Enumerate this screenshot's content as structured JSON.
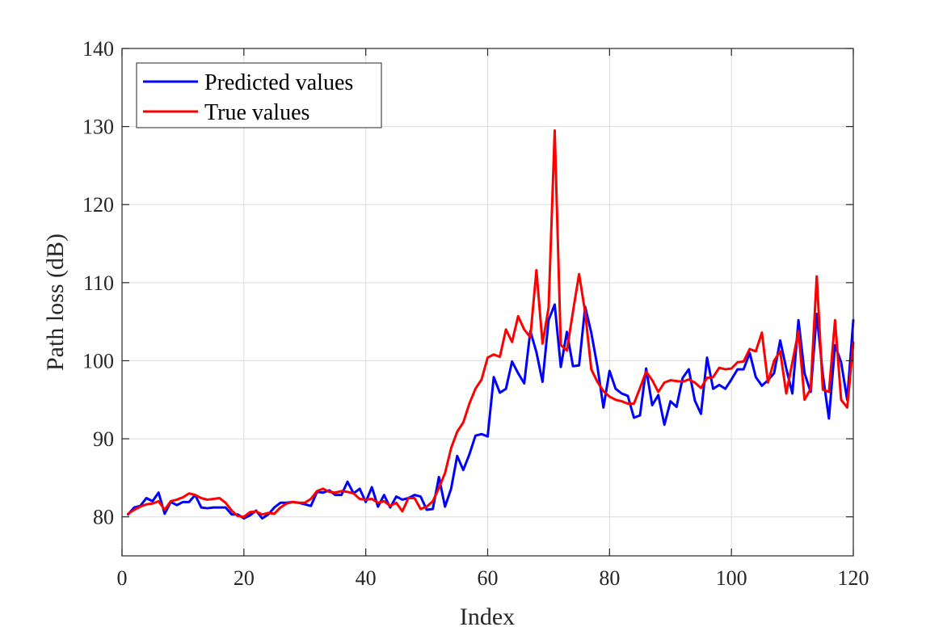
{
  "chart_data": {
    "type": "line",
    "xlabel": "Index",
    "ylabel": "Path loss (dB)",
    "xlim": [
      0,
      120
    ],
    "ylim": [
      75,
      140
    ],
    "xticks": [
      0,
      20,
      40,
      60,
      80,
      100,
      120
    ],
    "yticks": [
      80,
      90,
      100,
      110,
      120,
      130,
      140
    ],
    "grid": true,
    "legend_position": "top-left",
    "series": [
      {
        "name": "Predicted values",
        "color": "#0000ff",
        "x": [
          1,
          2,
          3,
          4,
          5,
          6,
          7,
          8,
          9,
          10,
          11,
          12,
          13,
          14,
          15,
          16,
          17,
          18,
          19,
          20,
          21,
          22,
          23,
          24,
          25,
          26,
          27,
          28,
          29,
          30,
          31,
          32,
          33,
          34,
          35,
          36,
          37,
          38,
          39,
          40,
          41,
          42,
          43,
          44,
          45,
          46,
          47,
          48,
          49,
          50,
          51,
          52,
          53,
          54,
          55,
          56,
          57,
          58,
          59,
          60,
          61,
          62,
          63,
          64,
          65,
          66,
          67,
          68,
          69,
          70,
          71,
          72,
          73,
          74,
          75,
          76,
          77,
          78,
          79,
          80,
          81,
          82,
          83,
          84,
          85,
          86,
          87,
          88,
          89,
          90,
          91,
          92,
          93,
          94,
          95,
          96,
          97,
          98,
          99,
          100,
          101,
          102,
          103,
          104,
          105,
          106,
          107,
          108,
          109,
          110,
          111,
          112,
          113,
          114,
          115,
          116,
          117,
          118,
          119,
          120
        ],
        "values": [
          80.3,
          81.2,
          81.4,
          82.4,
          82.0,
          83.1,
          80.4,
          81.9,
          81.5,
          81.9,
          81.9,
          82.8,
          81.2,
          81.1,
          81.2,
          81.2,
          81.2,
          80.3,
          80.3,
          79.8,
          80.2,
          80.8,
          79.8,
          80.3,
          81.2,
          81.8,
          81.8,
          81.9,
          81.8,
          81.6,
          81.4,
          83.2,
          83.1,
          83.4,
          82.8,
          82.8,
          84.5,
          83.0,
          83.6,
          81.9,
          83.8,
          81.3,
          82.8,
          81.2,
          82.6,
          82.2,
          82.4,
          82.8,
          82.6,
          80.9,
          81.0,
          85.1,
          81.3,
          83.6,
          87.8,
          86.0,
          88.0,
          90.4,
          90.6,
          90.3,
          97.9,
          95.9,
          96.4,
          99.9,
          98.4,
          97.1,
          103.8,
          101.1,
          97.3,
          105.2,
          107.2,
          99.2,
          103.7,
          99.3,
          99.4,
          106.9,
          103.6,
          99.3,
          94.0,
          98.7,
          96.4,
          95.8,
          95.5,
          92.7,
          93.0,
          99.0,
          94.3,
          95.6,
          91.8,
          94.8,
          94.1,
          97.8,
          98.9,
          94.9,
          93.2,
          100.4,
          96.4,
          96.9,
          96.4,
          97.6,
          98.9,
          98.9,
          101.0,
          97.9,
          96.8,
          97.5,
          98.4,
          102.6,
          99.0,
          95.8,
          105.2,
          98.4,
          96.0,
          106.0,
          98.2,
          92.6,
          102.0,
          99.8,
          95.0,
          105.2
        ]
      },
      {
        "name": "True values",
        "color": "#ff0000",
        "x": [
          1,
          2,
          3,
          4,
          5,
          6,
          7,
          8,
          9,
          10,
          11,
          12,
          13,
          14,
          15,
          16,
          17,
          18,
          19,
          20,
          21,
          22,
          23,
          24,
          25,
          26,
          27,
          28,
          29,
          30,
          31,
          32,
          33,
          34,
          35,
          36,
          37,
          38,
          39,
          40,
          41,
          42,
          43,
          44,
          45,
          46,
          47,
          48,
          49,
          50,
          51,
          52,
          53,
          54,
          55,
          56,
          57,
          58,
          59,
          60,
          61,
          62,
          63,
          64,
          65,
          66,
          67,
          68,
          69,
          70,
          71,
          72,
          73,
          74,
          75,
          76,
          77,
          78,
          79,
          80,
          81,
          82,
          83,
          84,
          85,
          86,
          87,
          88,
          89,
          90,
          91,
          92,
          93,
          94,
          95,
          96,
          97,
          98,
          99,
          100,
          101,
          102,
          103,
          104,
          105,
          106,
          107,
          108,
          109,
          110,
          111,
          112,
          113,
          114,
          115,
          116,
          117,
          118,
          119,
          120
        ],
        "values": [
          80.4,
          80.9,
          81.3,
          81.6,
          81.7,
          82.0,
          80.9,
          82.0,
          82.2,
          82.5,
          83.0,
          82.8,
          82.4,
          82.2,
          82.3,
          82.4,
          81.8,
          80.8,
          80.1,
          80.0,
          80.6,
          80.7,
          80.3,
          80.5,
          80.4,
          81.2,
          81.7,
          81.9,
          81.8,
          81.8,
          82.3,
          83.3,
          83.6,
          83.2,
          83.1,
          83.3,
          83.2,
          83.0,
          82.3,
          82.2,
          82.3,
          81.8,
          82.0,
          81.4,
          81.8,
          80.7,
          82.4,
          82.4,
          81.0,
          81.3,
          82.0,
          83.7,
          85.6,
          88.8,
          90.9,
          92.1,
          94.5,
          96.4,
          97.6,
          100.4,
          100.8,
          100.5,
          104.0,
          102.4,
          105.7,
          104.0,
          103.0,
          111.6,
          102.2,
          106.8,
          129.5,
          102.0,
          101.3,
          106.3,
          111.1,
          106.2,
          98.9,
          97.3,
          96.1,
          95.4,
          95.0,
          94.8,
          94.5,
          94.5,
          96.5,
          98.6,
          97.5,
          96.0,
          97.2,
          97.5,
          97.4,
          97.3,
          97.6,
          97.2,
          96.5,
          97.8,
          97.9,
          99.1,
          98.9,
          99.0,
          99.8,
          99.9,
          101.5,
          101.2,
          103.6,
          97.2,
          100.0,
          101.2,
          95.8,
          99.8,
          103.8,
          95.0,
          96.4,
          110.8,
          96.3,
          96.0,
          105.2,
          95.0,
          94.0,
          102.3
        ]
      }
    ]
  }
}
